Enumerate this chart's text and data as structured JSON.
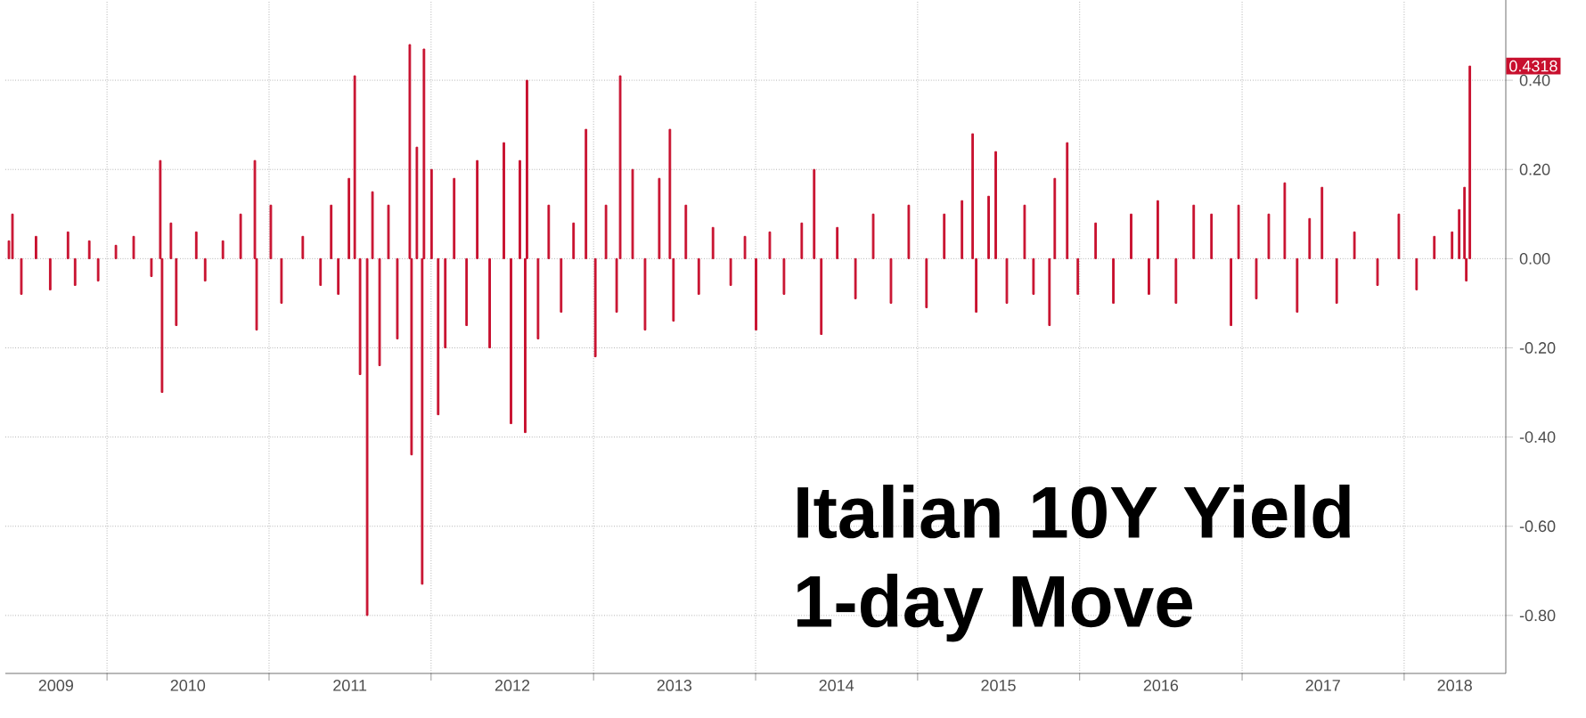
{
  "chart_data": {
    "type": "bar",
    "title": "Italian 10Y Yield 1-day Move",
    "x": [
      "2009-05-25",
      "2009-06-02",
      "2009-06-22",
      "2009-07-25",
      "2009-08-26",
      "2009-10-05",
      "2009-10-21",
      "2009-11-22",
      "2009-12-12",
      "2010-01-21",
      "2010-03-02",
      "2010-04-11",
      "2010-05-01",
      "2010-05-05",
      "2010-05-25",
      "2010-06-06",
      "2010-07-21",
      "2010-08-10",
      "2010-09-19",
      "2010-10-29",
      "2010-11-30",
      "2010-12-04",
      "2011-01-05",
      "2011-01-29",
      "2011-03-18",
      "2011-04-27",
      "2011-05-21",
      "2011-06-06",
      "2011-06-30",
      "2011-07-13",
      "2011-07-25",
      "2011-08-10",
      "2011-08-22",
      "2011-09-07",
      "2011-09-27",
      "2011-10-17",
      "2011-11-14",
      "2011-11-18",
      "2011-11-30",
      "2011-12-12",
      "2011-12-16",
      "2012-01-02",
      "2012-01-17",
      "2012-02-02",
      "2012-02-22",
      "2012-03-21",
      "2012-04-14",
      "2012-05-12",
      "2012-06-13",
      "2012-06-29",
      "2012-07-19",
      "2012-07-31",
      "2012-08-04",
      "2012-08-29",
      "2012-09-22",
      "2012-10-20",
      "2012-11-17",
      "2012-12-15",
      "2013-01-05",
      "2013-01-29",
      "2013-02-22",
      "2013-03-02",
      "2013-03-30",
      "2013-04-27",
      "2013-05-29",
      "2013-06-22",
      "2013-06-30",
      "2013-07-28",
      "2013-08-26",
      "2013-09-27",
      "2013-11-06",
      "2013-12-08",
      "2014-01-02",
      "2014-02-02",
      "2014-03-06",
      "2014-04-15",
      "2014-05-13",
      "2014-05-29",
      "2014-07-04",
      "2014-08-14",
      "2014-09-23",
      "2014-11-02",
      "2014-12-12",
      "2015-01-21",
      "2015-03-02",
      "2015-04-11",
      "2015-05-05",
      "2015-05-13",
      "2015-06-10",
      "2015-06-26",
      "2015-07-21",
      "2015-08-30",
      "2015-09-19",
      "2015-10-25",
      "2015-11-06",
      "2015-12-04",
      "2015-12-28",
      "2016-02-06",
      "2016-03-17",
      "2016-04-26",
      "2016-06-05",
      "2016-06-25",
      "2016-08-05",
      "2016-09-14",
      "2016-10-24",
      "2016-12-07",
      "2016-12-24",
      "2017-02-02",
      "2017-03-02",
      "2017-04-07",
      "2017-05-05",
      "2017-06-02",
      "2017-06-30",
      "2017-08-02",
      "2017-09-11",
      "2017-11-02",
      "2017-12-20",
      "2018-01-29",
      "2018-03-10",
      "2018-04-19",
      "2018-05-05",
      "2018-05-17",
      "2018-05-21",
      "2018-05-29"
    ],
    "values": [
      0.04,
      0.1,
      -0.08,
      0.05,
      -0.07,
      0.06,
      -0.06,
      0.04,
      -0.05,
      0.03,
      0.05,
      -0.04,
      0.22,
      -0.3,
      0.08,
      -0.15,
      0.06,
      -0.05,
      0.04,
      0.1,
      0.22,
      -0.16,
      0.12,
      -0.1,
      0.05,
      -0.06,
      0.12,
      -0.08,
      0.18,
      0.41,
      -0.26,
      -0.8,
      0.15,
      -0.24,
      0.12,
      -0.18,
      0.48,
      -0.44,
      0.25,
      -0.73,
      0.47,
      0.2,
      -0.35,
      -0.2,
      0.18,
      -0.15,
      0.22,
      -0.2,
      0.26,
      -0.37,
      0.22,
      -0.39,
      0.4,
      -0.18,
      0.12,
      -0.12,
      0.08,
      0.29,
      -0.22,
      0.12,
      -0.12,
      0.41,
      0.2,
      -0.16,
      0.18,
      0.29,
      -0.14,
      0.12,
      -0.08,
      0.07,
      -0.06,
      0.05,
      -0.16,
      0.06,
      -0.08,
      0.08,
      0.2,
      -0.17,
      0.07,
      -0.09,
      0.1,
      -0.1,
      0.12,
      -0.11,
      0.1,
      0.13,
      0.28,
      -0.12,
      0.14,
      0.24,
      -0.1,
      0.12,
      -0.08,
      -0.15,
      0.18,
      0.26,
      -0.08,
      0.08,
      -0.1,
      0.1,
      -0.08,
      0.13,
      -0.1,
      0.12,
      0.1,
      -0.15,
      0.12,
      -0.09,
      0.1,
      0.17,
      -0.12,
      0.09,
      0.16,
      -0.1,
      0.06,
      -0.06,
      0.1,
      -0.07,
      0.05,
      0.06,
      0.11,
      0.16,
      -0.05,
      0.4318
    ],
    "color": "#c8102e",
    "xlim": [
      "2009-05-17",
      "2018-08-18"
    ],
    "xticks": [
      {
        "value": "2010-01-01",
        "label": null
      },
      {
        "value": "2011-01-01",
        "label": null
      },
      {
        "value": "2012-01-01",
        "label": null
      },
      {
        "value": "2013-01-01",
        "label": null
      },
      {
        "value": "2014-01-01",
        "label": null
      },
      {
        "value": "2015-01-01",
        "label": null
      },
      {
        "value": "2016-01-01",
        "label": null
      },
      {
        "value": "2017-01-01",
        "label": null
      },
      {
        "value": "2018-01-01",
        "label": null
      },
      {
        "value": "2009-09-08",
        "label": "2009"
      },
      {
        "value": "2010-07-02",
        "label": "2010"
      },
      {
        "value": "2011-07-02",
        "label": "2011"
      },
      {
        "value": "2012-07-02",
        "label": "2012"
      },
      {
        "value": "2013-07-02",
        "label": "2013"
      },
      {
        "value": "2014-07-02",
        "label": "2014"
      },
      {
        "value": "2015-07-02",
        "label": "2015"
      },
      {
        "value": "2016-07-02",
        "label": "2016"
      },
      {
        "value": "2017-07-02",
        "label": "2017"
      },
      {
        "value": "2018-04-25",
        "label": "2018"
      }
    ],
    "ylim": [
      -0.93,
      0.58
    ],
    "yticks": [
      {
        "value": 0.4,
        "label": "0.40"
      },
      {
        "value": 0.2,
        "label": "0.20"
      },
      {
        "value": 0,
        "label": "0.00"
      },
      {
        "value": -0.2,
        "label": "-0.20"
      },
      {
        "value": -0.4,
        "label": "-0.40"
      },
      {
        "value": -0.6,
        "label": "-0.60"
      },
      {
        "value": -0.8,
        "label": "-0.80"
      }
    ],
    "grid": true,
    "annotations": [
      "0.4318"
    ]
  }
}
